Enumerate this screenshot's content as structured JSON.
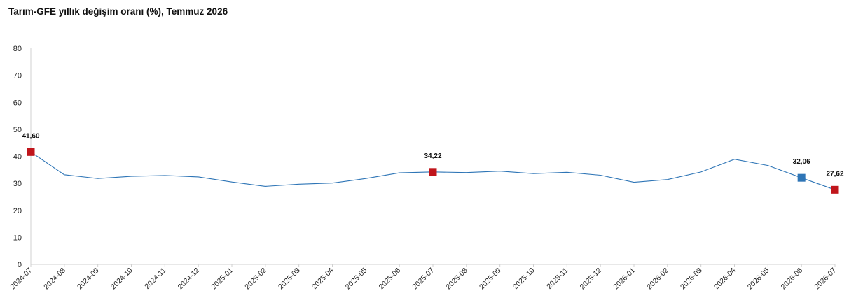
{
  "chart_data": {
    "type": "line",
    "title": "Tarım-GFE yıllık değişim oranı (%), Temmuz 2026",
    "xlabel": "",
    "ylabel": "",
    "ylim": [
      0,
      80
    ],
    "yticks": [
      0,
      10,
      20,
      30,
      40,
      50,
      60,
      70,
      80
    ],
    "grid": false,
    "categories": [
      "2024-07",
      "2024-08",
      "2024-09",
      "2024-10",
      "2024-11",
      "2024-12",
      "2025-01",
      "2025-02",
      "2025-03",
      "2025-04",
      "2025-05",
      "2025-06",
      "2025-07",
      "2025-08",
      "2025-09",
      "2025-10",
      "2025-11",
      "2025-12",
      "2026-01",
      "2026-02",
      "2026-03",
      "2026-04",
      "2026-05",
      "2026-06",
      "2026-07"
    ],
    "series": [
      {
        "color": "#2e75b6",
        "values": [
          41.6,
          33.2,
          31.8,
          32.6,
          32.9,
          32.4,
          30.5,
          28.9,
          29.7,
          30.1,
          31.8,
          33.9,
          34.22,
          34.0,
          34.5,
          33.6,
          34.1,
          33.0,
          30.4,
          31.4,
          34.2,
          38.9,
          36.6,
          32.06,
          27.62
        ]
      }
    ],
    "markers": [
      {
        "index": 0,
        "label": "41,60",
        "color": "#c0151b"
      },
      {
        "index": 12,
        "label": "34,22",
        "color": "#c0151b"
      },
      {
        "index": 23,
        "label": "32,06",
        "color": "#2e75b6"
      },
      {
        "index": 24,
        "label": "27,62",
        "color": "#c0151b"
      }
    ]
  }
}
